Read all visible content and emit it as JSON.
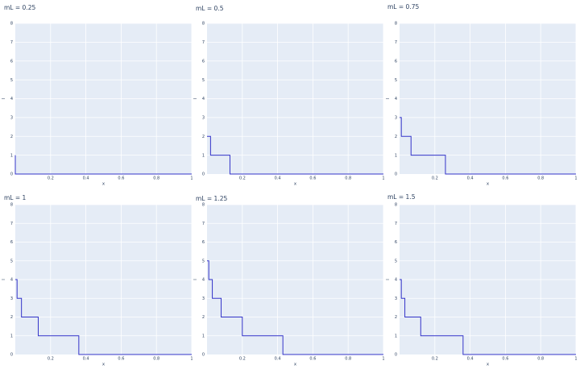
{
  "chart_data": [
    {
      "type": "line",
      "line_shape": "step",
      "title": "mL = 0.25",
      "xlabel": "x",
      "ylabel": "l",
      "xlim": [
        0,
        1
      ],
      "ylim": [
        0,
        8
      ],
      "xticks": [
        0.2,
        0.4,
        0.6,
        0.8,
        1
      ],
      "xtick_labels": [
        "0.2",
        "0.4",
        "0.6",
        "0.8",
        "1"
      ],
      "yticks": [
        0,
        1,
        2,
        3,
        4,
        5,
        6,
        7,
        8
      ],
      "ytick_labels": [
        "0",
        "1",
        "2",
        "3",
        "4",
        "5",
        "6",
        "7",
        "8"
      ],
      "grid": true,
      "color": "#3434c9",
      "series": [
        {
          "x": [
            0,
            0.0,
            1
          ],
          "y": [
            1,
            0,
            0
          ]
        }
      ]
    },
    {
      "type": "line",
      "line_shape": "step",
      "title": "mL = 0.5",
      "xlabel": "x",
      "ylabel": "l",
      "xlim": [
        0,
        1
      ],
      "ylim": [
        0,
        8
      ],
      "xticks": [
        0.2,
        0.4,
        0.6,
        0.8,
        1
      ],
      "xtick_labels": [
        "0.2",
        "0.4",
        "0.6",
        "0.8",
        "1"
      ],
      "yticks": [
        0,
        1,
        2,
        3,
        4,
        5,
        6,
        7,
        8
      ],
      "ytick_labels": [
        "0",
        "1",
        "2",
        "3",
        "4",
        "5",
        "6",
        "7",
        "8"
      ],
      "grid": true,
      "color": "#3434c9",
      "series": [
        {
          "x": [
            0,
            0.02,
            0.13,
            1
          ],
          "y": [
            2,
            1,
            0,
            0
          ]
        }
      ]
    },
    {
      "type": "line",
      "line_shape": "step",
      "title": "mL = 0.75",
      "xlabel": "x",
      "ylabel": "l",
      "xlim": [
        0,
        1
      ],
      "ylim": [
        0,
        8
      ],
      "xticks": [
        0.2,
        0.4,
        0.6,
        0.8,
        1
      ],
      "xtick_labels": [
        "0.2",
        "0.4",
        "0.6",
        "0.8",
        "1"
      ],
      "yticks": [
        0,
        1,
        2,
        3,
        4,
        5,
        6,
        7,
        8
      ],
      "ytick_labels": [
        "0",
        "1",
        "2",
        "3",
        "4",
        "5",
        "6",
        "7",
        "8"
      ],
      "grid": true,
      "color": "#3434c9",
      "series": [
        {
          "x": [
            0,
            0.01,
            0.065,
            0.26,
            1
          ],
          "y": [
            3,
            2,
            1,
            0,
            0
          ]
        }
      ]
    },
    {
      "type": "line",
      "line_shape": "step",
      "title": "mL = 1",
      "xlabel": "x",
      "ylabel": "l",
      "xlim": [
        0,
        1
      ],
      "ylim": [
        0,
        8
      ],
      "xticks": [
        0.2,
        0.4,
        0.6,
        0.8,
        1
      ],
      "xtick_labels": [
        "0.2",
        "0.4",
        "0.6",
        "0.8",
        "1"
      ],
      "yticks": [
        0,
        1,
        2,
        3,
        4,
        5,
        6,
        7,
        8
      ],
      "ytick_labels": [
        "0",
        "1",
        "2",
        "3",
        "4",
        "5",
        "6",
        "7",
        "8"
      ],
      "grid": true,
      "color": "#3434c9",
      "series": [
        {
          "x": [
            0,
            0.01,
            0.035,
            0.13,
            0.36,
            1
          ],
          "y": [
            4,
            3,
            2,
            1,
            0,
            0
          ]
        }
      ]
    },
    {
      "type": "line",
      "line_shape": "step",
      "title": "mL = 1.25",
      "xlabel": "x",
      "ylabel": "l",
      "xlim": [
        0,
        1
      ],
      "ylim": [
        0,
        8
      ],
      "xticks": [
        0.2,
        0.4,
        0.6,
        0.8,
        1
      ],
      "xtick_labels": [
        "0.2",
        "0.4",
        "0.6",
        "0.8",
        "1"
      ],
      "yticks": [
        0,
        1,
        2,
        3,
        4,
        5,
        6,
        7,
        8
      ],
      "ytick_labels": [
        "0",
        "1",
        "2",
        "3",
        "4",
        "5",
        "6",
        "7",
        "8"
      ],
      "grid": true,
      "color": "#3434c9",
      "series": [
        {
          "x": [
            0,
            0.01,
            0.03,
            0.08,
            0.2,
            0.43,
            1
          ],
          "y": [
            5,
            4,
            3,
            2,
            1,
            0,
            0
          ]
        }
      ]
    },
    {
      "type": "line",
      "line_shape": "step",
      "title": "mL = 1.5",
      "xlabel": "x",
      "ylabel": "l",
      "xlim": [
        0,
        1
      ],
      "ylim": [
        0,
        8
      ],
      "xticks": [
        0.2,
        0.4,
        0.6,
        0.8,
        1
      ],
      "xtick_labels": [
        "0.2",
        "0.4",
        "0.6",
        "0.8",
        "1"
      ],
      "yticks": [
        0,
        1,
        2,
        3,
        4,
        5,
        6,
        7,
        8
      ],
      "ytick_labels": [
        "0",
        "1",
        "2",
        "3",
        "4",
        "5",
        "6",
        "7",
        "8"
      ],
      "grid": true,
      "color": "#3434c9",
      "series": [
        {
          "x": [
            0,
            0.01,
            0.03,
            0.12,
            0.36,
            1
          ],
          "y": [
            4,
            3,
            2,
            1,
            0,
            0
          ]
        }
      ]
    }
  ]
}
